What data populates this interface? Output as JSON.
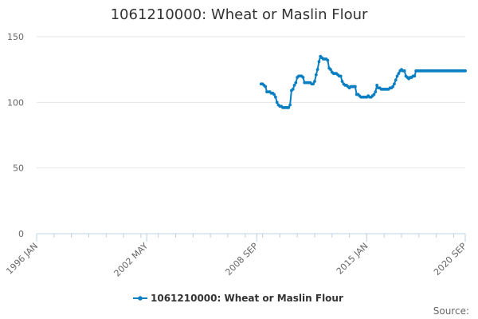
{
  "chart_data": {
    "type": "line",
    "title": "1061210000: Wheat or Maslin Flour",
    "xlabel": "",
    "ylabel": "",
    "source_label": "Source:",
    "legend_position": "bottom",
    "grid": true,
    "x_range": [
      "1996-01",
      "2020-09"
    ],
    "ylim": [
      0,
      150
    ],
    "y_ticks": [
      0,
      50,
      100,
      150
    ],
    "x_ticks": [
      {
        "date": "1996-01",
        "label": "1996 JAN"
      },
      {
        "date": "2002-05",
        "label": "2002 MAY"
      },
      {
        "date": "2008-09",
        "label": "2008 SEP"
      },
      {
        "date": "2015-01",
        "label": "2015 JAN"
      },
      {
        "date": "2020-09",
        "label": "2020 SEP"
      }
    ],
    "series": [
      {
        "name": "1061210000: Wheat or Maslin Flour",
        "color": "#0b7fc1",
        "x": [
          "2008-12",
          "2009-01",
          "2009-02",
          "2009-03",
          "2009-04",
          "2009-05",
          "2009-06",
          "2009-07",
          "2009-08",
          "2009-09",
          "2009-10",
          "2009-11",
          "2009-12",
          "2010-01",
          "2010-02",
          "2010-03",
          "2010-04",
          "2010-05",
          "2010-06",
          "2010-07",
          "2010-08",
          "2010-09",
          "2010-10",
          "2010-11",
          "2010-12",
          "2011-01",
          "2011-02",
          "2011-03",
          "2011-04",
          "2011-05",
          "2011-06",
          "2011-07",
          "2011-08",
          "2011-09",
          "2011-10",
          "2011-11",
          "2011-12",
          "2012-01",
          "2012-02",
          "2012-03",
          "2012-04",
          "2012-05",
          "2012-06",
          "2012-07",
          "2012-08",
          "2012-09",
          "2012-10",
          "2012-11",
          "2012-12",
          "2013-01",
          "2013-02",
          "2013-03",
          "2013-04",
          "2013-05",
          "2013-06",
          "2013-07",
          "2013-08",
          "2013-09",
          "2013-10",
          "2013-11",
          "2013-12",
          "2014-01",
          "2014-02",
          "2014-03",
          "2014-04",
          "2014-05",
          "2014-06",
          "2014-07",
          "2014-08",
          "2014-09",
          "2014-10",
          "2014-11",
          "2014-12",
          "2015-01",
          "2015-02",
          "2015-03",
          "2015-04",
          "2015-05",
          "2015-06",
          "2015-07",
          "2015-08",
          "2015-09",
          "2015-10",
          "2015-11",
          "2015-12",
          "2016-01",
          "2016-02",
          "2016-03",
          "2016-04",
          "2016-05",
          "2016-06",
          "2016-07",
          "2016-08",
          "2016-09",
          "2016-10",
          "2016-11",
          "2016-12",
          "2017-01",
          "2017-02",
          "2017-03",
          "2017-04",
          "2017-05",
          "2017-06",
          "2017-07",
          "2017-08",
          "2017-09",
          "2017-10",
          "2017-11",
          "2017-12",
          "2018-01",
          "2018-02",
          "2018-03",
          "2018-04",
          "2018-05",
          "2018-06",
          "2018-07",
          "2018-08",
          "2018-09",
          "2018-10",
          "2018-11",
          "2018-12",
          "2019-01",
          "2019-02",
          "2019-03",
          "2019-04",
          "2019-05",
          "2019-06",
          "2019-07",
          "2019-08",
          "2019-09",
          "2019-10",
          "2019-11",
          "2019-12",
          "2020-01",
          "2020-02",
          "2020-03",
          "2020-04",
          "2020-05",
          "2020-06",
          "2020-07",
          "2020-08",
          "2020-09"
        ],
        "values": [
          114,
          114,
          113,
          112,
          108,
          108,
          108,
          107,
          107,
          106,
          104,
          100,
          98,
          97,
          97,
          96,
          96,
          96,
          96,
          96,
          98,
          109,
          110,
          113,
          115,
          119,
          120,
          120,
          120,
          119,
          115,
          115,
          115,
          115,
          115,
          114,
          114,
          116,
          121,
          125,
          131,
          135,
          134,
          133,
          133,
          133,
          132,
          126,
          125,
          123,
          122,
          122,
          122,
          121,
          120,
          120,
          116,
          114,
          113,
          113,
          112,
          111,
          112,
          112,
          112,
          112,
          106,
          106,
          105,
          104,
          104,
          104,
          104,
          104,
          105,
          104,
          104,
          105,
          106,
          108,
          113,
          111,
          111,
          110,
          110,
          110,
          110,
          110,
          110,
          111,
          111,
          112,
          114,
          117,
          120,
          122,
          124,
          125,
          124,
          124,
          120,
          119,
          118,
          119,
          119,
          120,
          120,
          124,
          124,
          124,
          124,
          124,
          124,
          124,
          124,
          124,
          124,
          124,
          124,
          124,
          124,
          124,
          124,
          124,
          124,
          124,
          124,
          124,
          124,
          124,
          124,
          124,
          124,
          124,
          124,
          124,
          124,
          124,
          124,
          124,
          124,
          124
        ]
      }
    ]
  }
}
